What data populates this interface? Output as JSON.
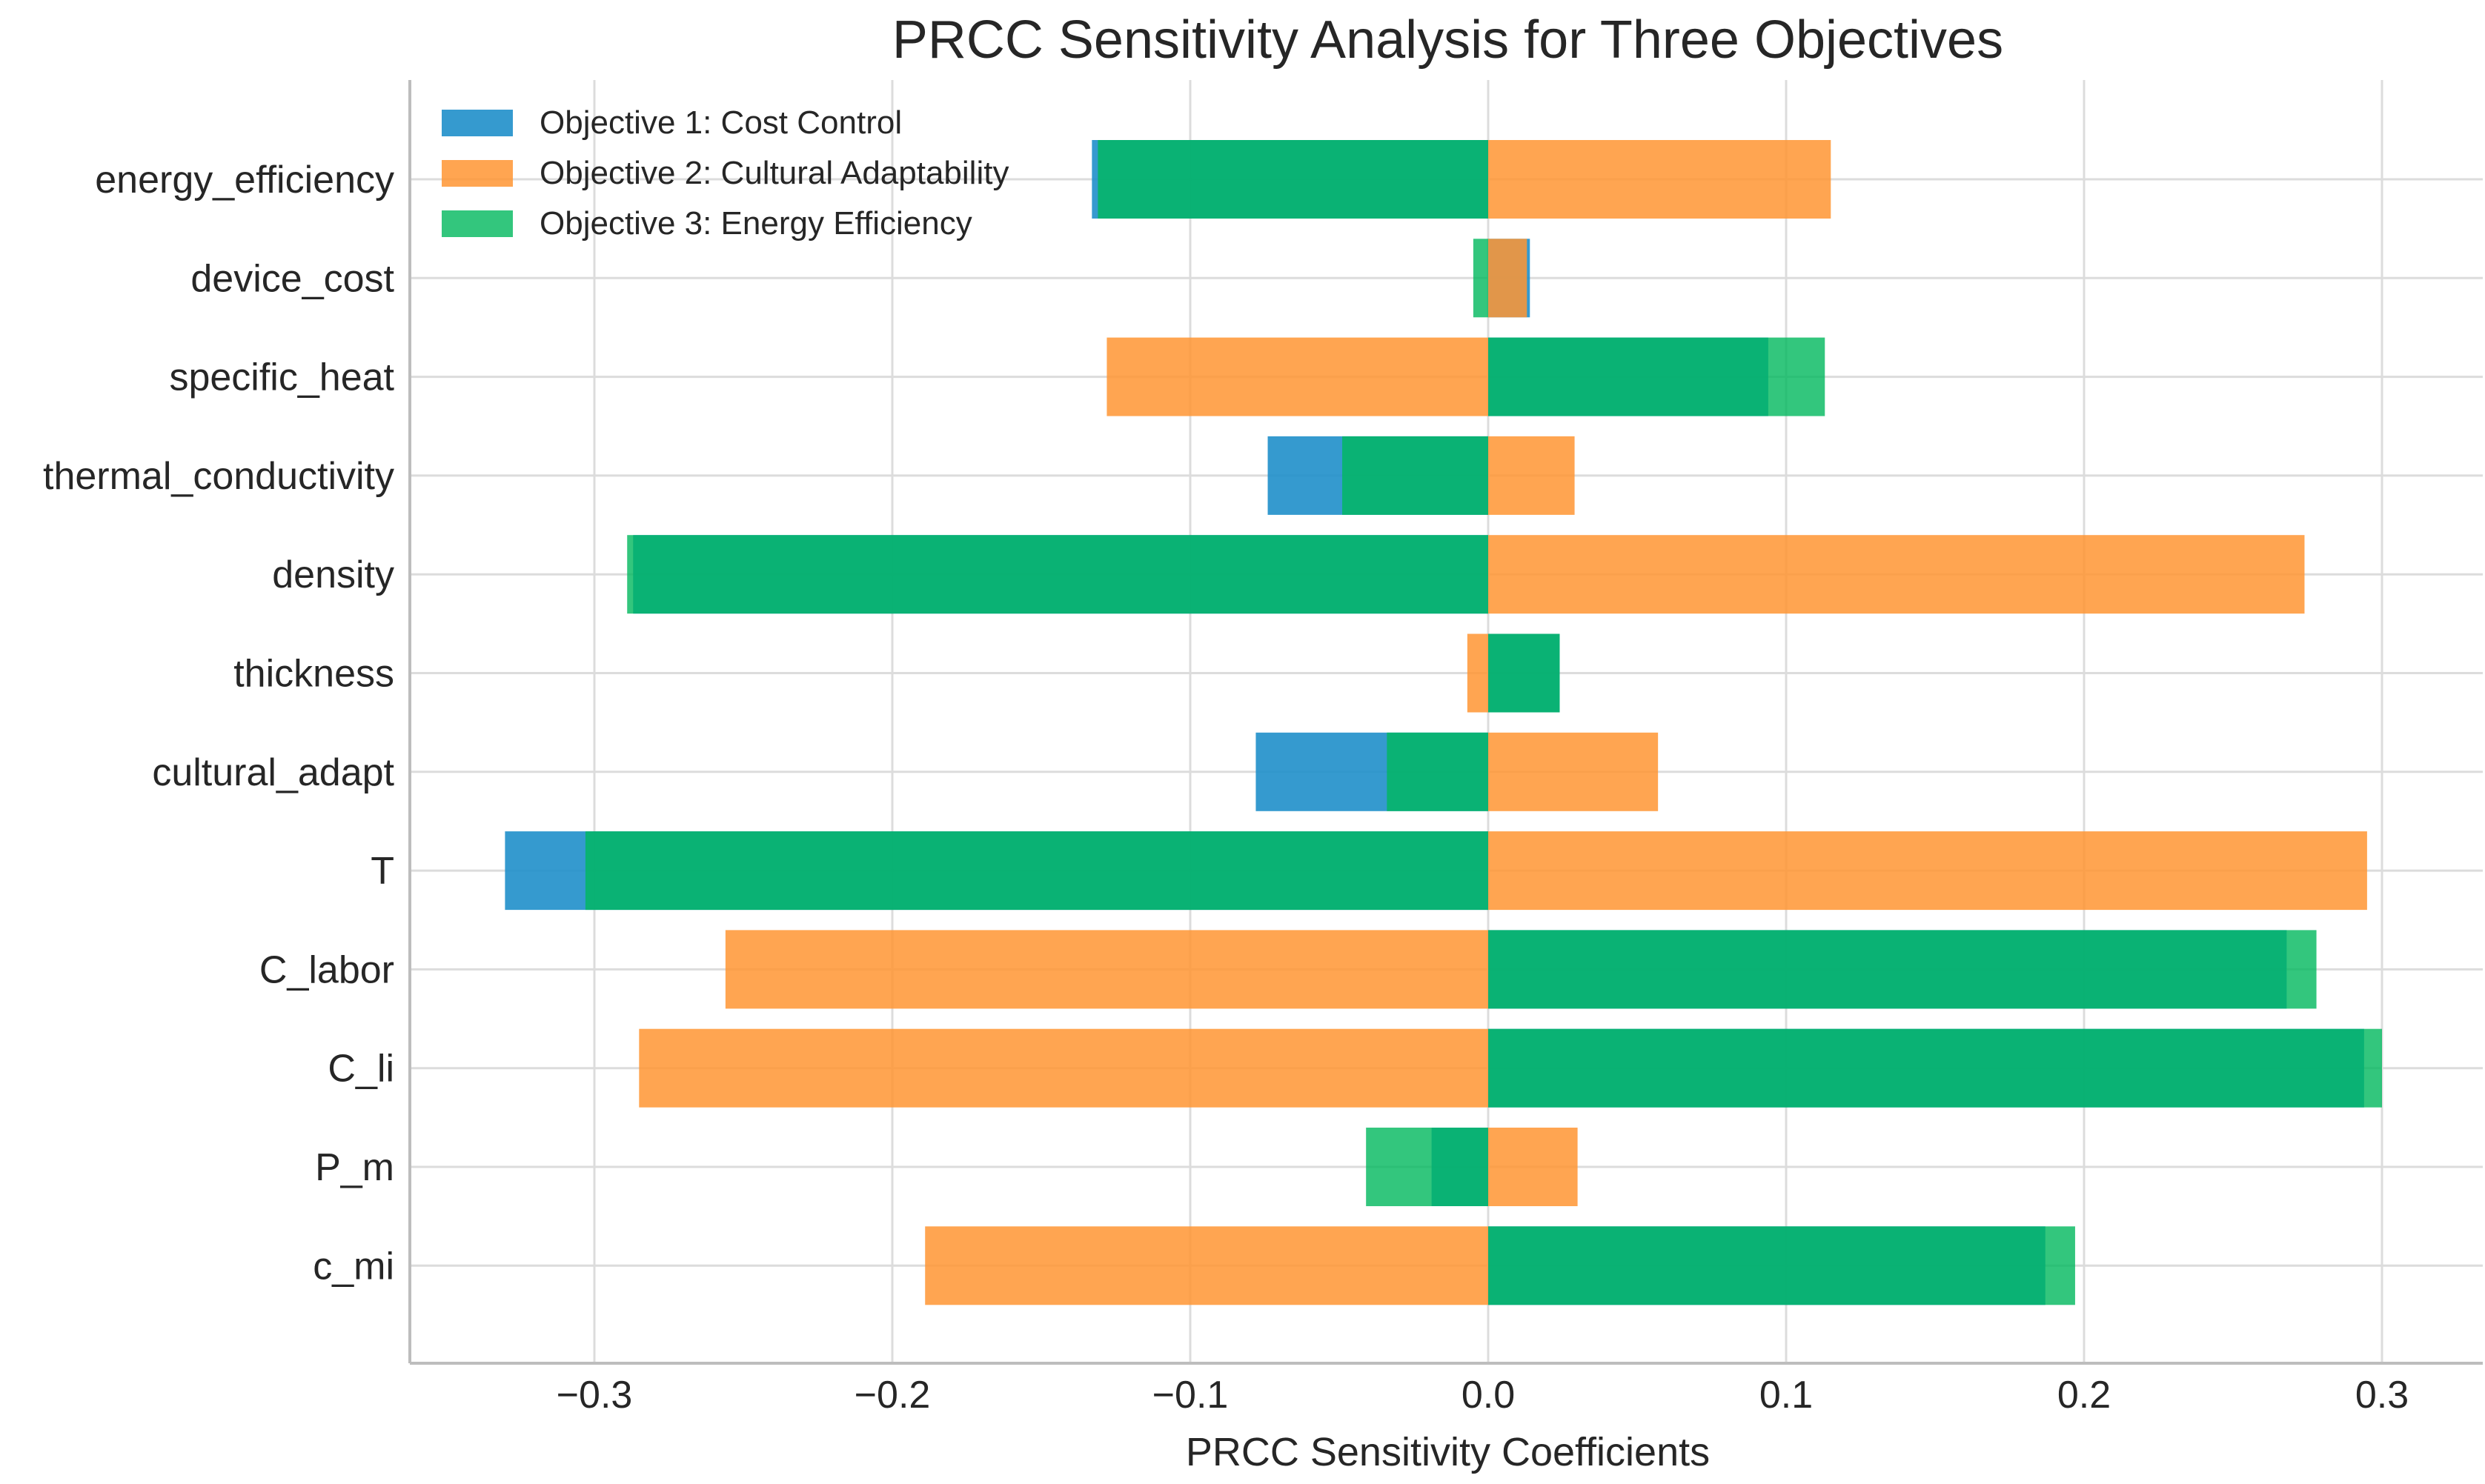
{
  "chart_data": {
    "type": "bar",
    "orientation": "horizontal",
    "title": "PRCC Sensitivity Analysis for Three Objectives",
    "xlabel": "PRCC Sensitivity Coefficients",
    "ylabel": "",
    "xlim": [
      -0.36,
      0.33
    ],
    "xticks": [
      -0.3,
      -0.2,
      -0.1,
      0.0,
      0.1,
      0.2,
      0.3
    ],
    "xtick_labels": [
      "−0.3",
      "−0.2",
      "−0.1",
      "0.0",
      "0.1",
      "0.2",
      "0.3"
    ],
    "grid": true,
    "legend_position": "top-left",
    "categories": [
      "energy_efficiency",
      "device_cost",
      "specific_heat",
      "thermal_conductivity",
      "density",
      "thickness",
      "cultural_adapt",
      "T",
      "C_labor",
      "C_li",
      "P_m",
      "c_mi"
    ],
    "series": [
      {
        "name": "Objective 1: Cost Control",
        "color": "#1f8fca",
        "values": [
          -0.133,
          0.014,
          0.094,
          -0.074,
          -0.287,
          0.024,
          -0.078,
          -0.33,
          0.268,
          0.294,
          -0.019,
          0.187
        ]
      },
      {
        "name": "Objective 2: Cultural Adaptability",
        "color": "#ff9533",
        "values": [
          0.115,
          0.013,
          -0.128,
          0.029,
          0.274,
          -0.007,
          0.057,
          0.295,
          -0.256,
          -0.285,
          0.03,
          -0.189
        ]
      },
      {
        "name": "Objective 3: Energy Efficiency",
        "color": "#00b85c",
        "values": [
          -0.131,
          -0.005,
          0.113,
          -0.049,
          -0.289,
          0.024,
          -0.034,
          -0.303,
          0.278,
          0.3,
          -0.041,
          0.197
        ]
      }
    ]
  }
}
